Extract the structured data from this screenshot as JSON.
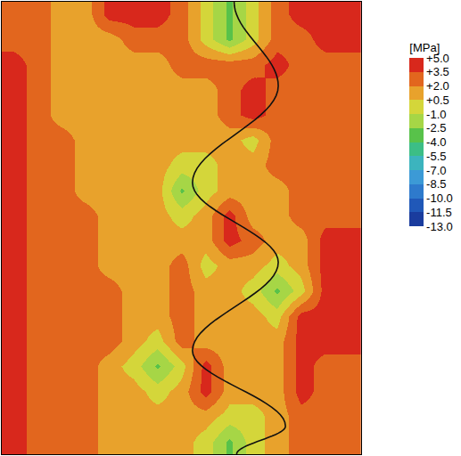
{
  "chart_data": {
    "type": "heatmap",
    "tick_labels": false,
    "cells": [
      [
        2.8,
        2.8,
        1.2,
        1.2,
        4.2,
        4.2,
        4.2,
        2.8,
        -0.2,
        -2.8,
        -0.2,
        2.8,
        4.2,
        4.2,
        4.2
      ],
      [
        2.8,
        2.8,
        1.2,
        1.2,
        1.2,
        2.8,
        2.8,
        2.8,
        -0.2,
        -2.8,
        -0.2,
        2.8,
        2.8,
        4.2,
        4.2
      ],
      [
        4.2,
        2.8,
        1.2,
        1.2,
        1.2,
        1.2,
        1.2,
        2.8,
        2.8,
        2.8,
        2.8,
        4.2,
        2.8,
        2.8,
        2.8
      ],
      [
        4.2,
        2.8,
        1.2,
        1.2,
        1.2,
        1.2,
        1.2,
        1.2,
        1.2,
        2.8,
        4.2,
        2.8,
        2.8,
        2.8,
        2.8
      ],
      [
        4.2,
        2.8,
        1.2,
        1.2,
        1.2,
        1.2,
        1.2,
        1.2,
        1.2,
        2.8,
        4.2,
        2.8,
        2.8,
        2.8,
        2.8
      ],
      [
        4.2,
        2.8,
        2.8,
        1.2,
        1.2,
        1.2,
        1.2,
        1.2,
        1.2,
        1.2,
        -0.2,
        2.8,
        2.8,
        2.8,
        2.8
      ],
      [
        4.2,
        2.8,
        2.8,
        1.2,
        1.2,
        1.2,
        1.2,
        -0.2,
        -0.2,
        1.2,
        1.2,
        2.8,
        2.8,
        2.8,
        2.8
      ],
      [
        4.2,
        2.8,
        2.8,
        1.2,
        1.2,
        1.2,
        1.2,
        -2.8,
        -0.2,
        1.2,
        1.2,
        1.2,
        2.8,
        2.8,
        2.8
      ],
      [
        4.2,
        2.8,
        2.8,
        2.8,
        1.2,
        1.2,
        1.2,
        -0.2,
        1.2,
        4.2,
        1.2,
        1.2,
        2.8,
        2.8,
        2.8
      ],
      [
        4.2,
        2.8,
        2.8,
        2.8,
        1.2,
        1.2,
        1.2,
        1.2,
        1.2,
        4.2,
        2.8,
        1.2,
        1.2,
        4.2,
        4.2
      ],
      [
        4.2,
        2.8,
        2.8,
        2.8,
        1.2,
        1.2,
        1.2,
        2.8,
        -0.2,
        1.2,
        1.2,
        -0.2,
        1.2,
        4.2,
        4.2
      ],
      [
        4.2,
        2.8,
        2.8,
        2.8,
        2.8,
        1.2,
        1.2,
        2.8,
        1.2,
        1.2,
        -0.2,
        -2.8,
        -0.2,
        4.2,
        4.2
      ],
      [
        4.2,
        2.8,
        2.8,
        2.8,
        2.8,
        1.2,
        1.2,
        2.8,
        1.2,
        1.2,
        1.2,
        -0.2,
        4.2,
        4.2,
        4.2
      ],
      [
        4.2,
        2.8,
        2.8,
        2.8,
        2.8,
        1.2,
        -0.2,
        2.8,
        1.2,
        1.2,
        1.2,
        1.2,
        4.2,
        4.2,
        4.2
      ],
      [
        4.2,
        2.8,
        2.8,
        2.8,
        1.2,
        -0.2,
        -2.8,
        -0.2,
        4.2,
        1.2,
        1.2,
        1.2,
        4.2,
        2.8,
        2.8
      ],
      [
        4.2,
        2.8,
        2.8,
        2.8,
        1.2,
        1.2,
        -0.2,
        1.2,
        4.2,
        1.2,
        1.2,
        1.2,
        4.2,
        2.8,
        2.8
      ],
      [
        4.2,
        2.8,
        2.8,
        2.8,
        1.2,
        1.2,
        1.2,
        1.2,
        1.2,
        -0.2,
        -0.2,
        1.2,
        2.8,
        2.8,
        2.8
      ],
      [
        4.2,
        2.8,
        2.8,
        2.8,
        1.2,
        1.2,
        1.2,
        1.2,
        -0.2,
        -2.8,
        -0.2,
        1.2,
        2.8,
        2.8,
        2.8
      ]
    ],
    "colorbar": {
      "title": "[MPa]",
      "range": [
        -13,
        5
      ],
      "ticks": [
        {
          "value": 5,
          "label": "+5.0"
        },
        {
          "value": 3.5,
          "label": "+3.5"
        },
        {
          "value": 2,
          "label": "+2.0"
        },
        {
          "value": 0.5,
          "label": "+0.5"
        },
        {
          "value": -1,
          "label": "-1.0"
        },
        {
          "value": -2.5,
          "label": "-2.5"
        },
        {
          "value": -4,
          "label": "-4.0"
        },
        {
          "value": -5.5,
          "label": "-5.5"
        },
        {
          "value": -7,
          "label": "-7.0"
        },
        {
          "value": -8.5,
          "label": "-8.5"
        },
        {
          "value": -10,
          "label": "-10.0"
        },
        {
          "value": -11.5,
          "label": "-11.5"
        },
        {
          "value": -13,
          "label": "-13.0"
        }
      ],
      "colors": [
        "#d8281c",
        "#e2661e",
        "#e8a22c",
        "#d4d63a",
        "#a6d646",
        "#58c24a",
        "#3cbe86",
        "#3cb4be",
        "#3c9ad6",
        "#2e7acc",
        "#2058b8",
        "#1a3c9e"
      ]
    }
  }
}
